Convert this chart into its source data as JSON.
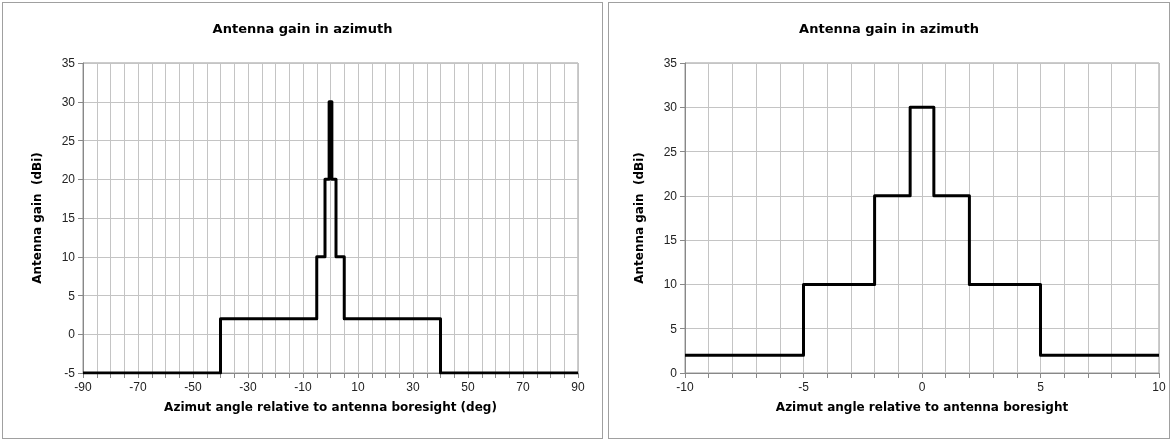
{
  "chart_data": [
    {
      "type": "line",
      "title": "Antenna gain in azimuth",
      "xlabel": "Azimut angle relative to antenna boresight (deg)",
      "ylabel": "Antenna gain  (dBi)",
      "grid": true,
      "marker": "none",
      "line_style": "solid",
      "xlim": [
        -90,
        90
      ],
      "ylim": [
        -5,
        35
      ],
      "yticks": [
        -5,
        0,
        5,
        10,
        15,
        20,
        25,
        30,
        35
      ],
      "xticks": [
        -90,
        {
          "value": -85,
          "label": null
        },
        {
          "value": -80,
          "label": null
        },
        {
          "value": -75,
          "label": null
        },
        -70,
        {
          "value": -65,
          "label": null
        },
        {
          "value": -60,
          "label": null
        },
        {
          "value": -55,
          "label": null
        },
        -50,
        {
          "value": -45,
          "label": null
        },
        {
          "value": -40,
          "label": null
        },
        {
          "value": -35,
          "label": null
        },
        -30,
        {
          "value": -25,
          "label": null
        },
        {
          "value": -20,
          "label": null
        },
        {
          "value": -15,
          "label": null
        },
        -10,
        {
          "value": -5,
          "label": null
        },
        {
          "value": 0,
          "label": null
        },
        {
          "value": 5,
          "label": null
        },
        10,
        {
          "value": 15,
          "label": null
        },
        {
          "value": 20,
          "label": null
        },
        {
          "value": 25,
          "label": null
        },
        30,
        {
          "value": 35,
          "label": null
        },
        {
          "value": 40,
          "label": null
        },
        {
          "value": 45,
          "label": null
        },
        50,
        {
          "value": 55,
          "label": null
        },
        {
          "value": 60,
          "label": null
        },
        {
          "value": 65,
          "label": null
        },
        70,
        {
          "value": 75,
          "label": null
        },
        {
          "value": 80,
          "label": null
        },
        {
          "value": 85,
          "label": null
        },
        90
      ],
      "series": [
        {
          "color": "#000000",
          "x": [
            -90,
            -40,
            -40,
            -5,
            -5,
            -2,
            -2,
            -0.5,
            -0.5,
            0.5,
            0.5,
            2,
            2,
            5,
            5,
            40,
            40,
            90
          ],
          "values": [
            -5,
            -5,
            2,
            2,
            10,
            10,
            20,
            20,
            30,
            30,
            20,
            20,
            10,
            10,
            2,
            2,
            -5,
            -5
          ]
        }
      ]
    },
    {
      "type": "line",
      "title": "Antenna gain in azimuth",
      "xlabel": "Azimut angle relative to antenna boresight",
      "ylabel": "Antenna gain  (dBi)",
      "grid": true,
      "marker": "none",
      "line_style": "solid",
      "xlim": [
        -10,
        10
      ],
      "ylim": [
        0,
        35
      ],
      "yticks": [
        0,
        5,
        10,
        15,
        20,
        25,
        30,
        35
      ],
      "xticks": [
        -10,
        {
          "value": -9,
          "label": null
        },
        {
          "value": -8,
          "label": null
        },
        {
          "value": -7,
          "label": null
        },
        {
          "value": -6,
          "label": null
        },
        -5,
        {
          "value": -4,
          "label": null
        },
        {
          "value": -3,
          "label": null
        },
        {
          "value": -2,
          "label": null
        },
        {
          "value": -1,
          "label": null
        },
        0,
        {
          "value": 1,
          "label": null
        },
        {
          "value": 2,
          "label": null
        },
        {
          "value": 3,
          "label": null
        },
        {
          "value": 4,
          "label": null
        },
        5,
        {
          "value": 6,
          "label": null
        },
        {
          "value": 7,
          "label": null
        },
        {
          "value": 8,
          "label": null
        },
        {
          "value": 9,
          "label": null
        },
        10
      ],
      "series": [
        {
          "color": "#000000",
          "x": [
            -10,
            -5,
            -5,
            -2,
            -2,
            -0.5,
            -0.5,
            0.5,
            0.5,
            2,
            2,
            5,
            5,
            10
          ],
          "values": [
            2,
            2,
            10,
            10,
            20,
            20,
            30,
            30,
            20,
            20,
            10,
            10,
            2,
            2
          ]
        }
      ]
    }
  ]
}
